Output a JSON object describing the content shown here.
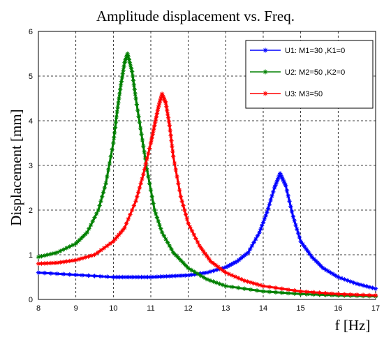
{
  "chart_data": {
    "type": "line",
    "title": "Amplitude displacement vs. Freq.",
    "xlabel": "f [Hz]",
    "ylabel": "Displacement [mm]",
    "xlim": [
      8,
      17
    ],
    "ylim": [
      0,
      6
    ],
    "x_ticks": [
      "8",
      "9",
      "10",
      "11",
      "12",
      "13",
      "14",
      "15",
      "16",
      "17"
    ],
    "y_ticks": [
      "0",
      "1",
      "2",
      "3",
      "4",
      "5",
      "6"
    ],
    "grid": true,
    "legend_position": "top-right",
    "series": [
      {
        "name": "U1: M1=30 ,K1=0",
        "color": "#0000ff",
        "marker": "star",
        "x": [
          8,
          9,
          10,
          10.5,
          11,
          11.5,
          12,
          12.5,
          13,
          13.3,
          13.6,
          13.9,
          14.1,
          14.3,
          14.45,
          14.6,
          14.8,
          15.0,
          15.3,
          15.6,
          16.0,
          16.5,
          17.0
        ],
        "y": [
          0.6,
          0.55,
          0.5,
          0.5,
          0.5,
          0.52,
          0.54,
          0.6,
          0.72,
          0.85,
          1.05,
          1.5,
          1.95,
          2.5,
          2.82,
          2.55,
          1.85,
          1.3,
          0.95,
          0.7,
          0.5,
          0.35,
          0.24
        ]
      },
      {
        "name": "U2: M2=50 ,K2=0",
        "color": "#008000",
        "marker": "star",
        "x": [
          8,
          8.5,
          9,
          9.3,
          9.6,
          9.8,
          10.0,
          10.1,
          10.2,
          10.3,
          10.38,
          10.5,
          10.6,
          10.75,
          10.9,
          11.1,
          11.3,
          11.6,
          12.0,
          12.5,
          13,
          14,
          15,
          16,
          17
        ],
        "y": [
          0.95,
          1.05,
          1.25,
          1.5,
          2.0,
          2.6,
          3.5,
          4.2,
          4.8,
          5.3,
          5.5,
          5.1,
          4.5,
          3.7,
          2.9,
          2.0,
          1.5,
          1.05,
          0.7,
          0.45,
          0.3,
          0.18,
          0.12,
          0.09,
          0.07
        ]
      },
      {
        "name": "U3: M3=50",
        "color": "#ff0000",
        "marker": "star",
        "x": [
          8,
          8.5,
          9,
          9.5,
          10,
          10.3,
          10.6,
          10.8,
          11.0,
          11.1,
          11.2,
          11.3,
          11.4,
          11.5,
          11.6,
          11.8,
          12.0,
          12.3,
          12.6,
          13,
          13.5,
          14,
          15,
          16,
          17
        ],
        "y": [
          0.8,
          0.82,
          0.88,
          1.0,
          1.3,
          1.6,
          2.2,
          2.8,
          3.5,
          3.9,
          4.3,
          4.6,
          4.4,
          3.9,
          3.2,
          2.3,
          1.7,
          1.2,
          0.85,
          0.6,
          0.42,
          0.3,
          0.18,
          0.12,
          0.09
        ]
      }
    ]
  }
}
